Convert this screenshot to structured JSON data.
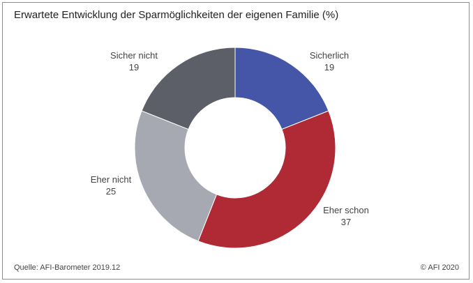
{
  "chart_data": {
    "type": "pie",
    "title": "Erwartete Entwicklung der Sparmöglichkeiten der eigenen Familie (%)",
    "categories": [
      "Sicherlich",
      "Eher schon",
      "Eher nicht",
      "Sicher nicht"
    ],
    "values": [
      19,
      37,
      25,
      19
    ],
    "colors": [
      "#4555a8",
      "#b02a35",
      "#a6a9b1",
      "#5c5f67"
    ],
    "donut": true,
    "legend": "labels beside slices"
  },
  "footer": {
    "source": "Quelle: AFI-Barometer 2019.12",
    "copyright": "© AFI 2020"
  }
}
